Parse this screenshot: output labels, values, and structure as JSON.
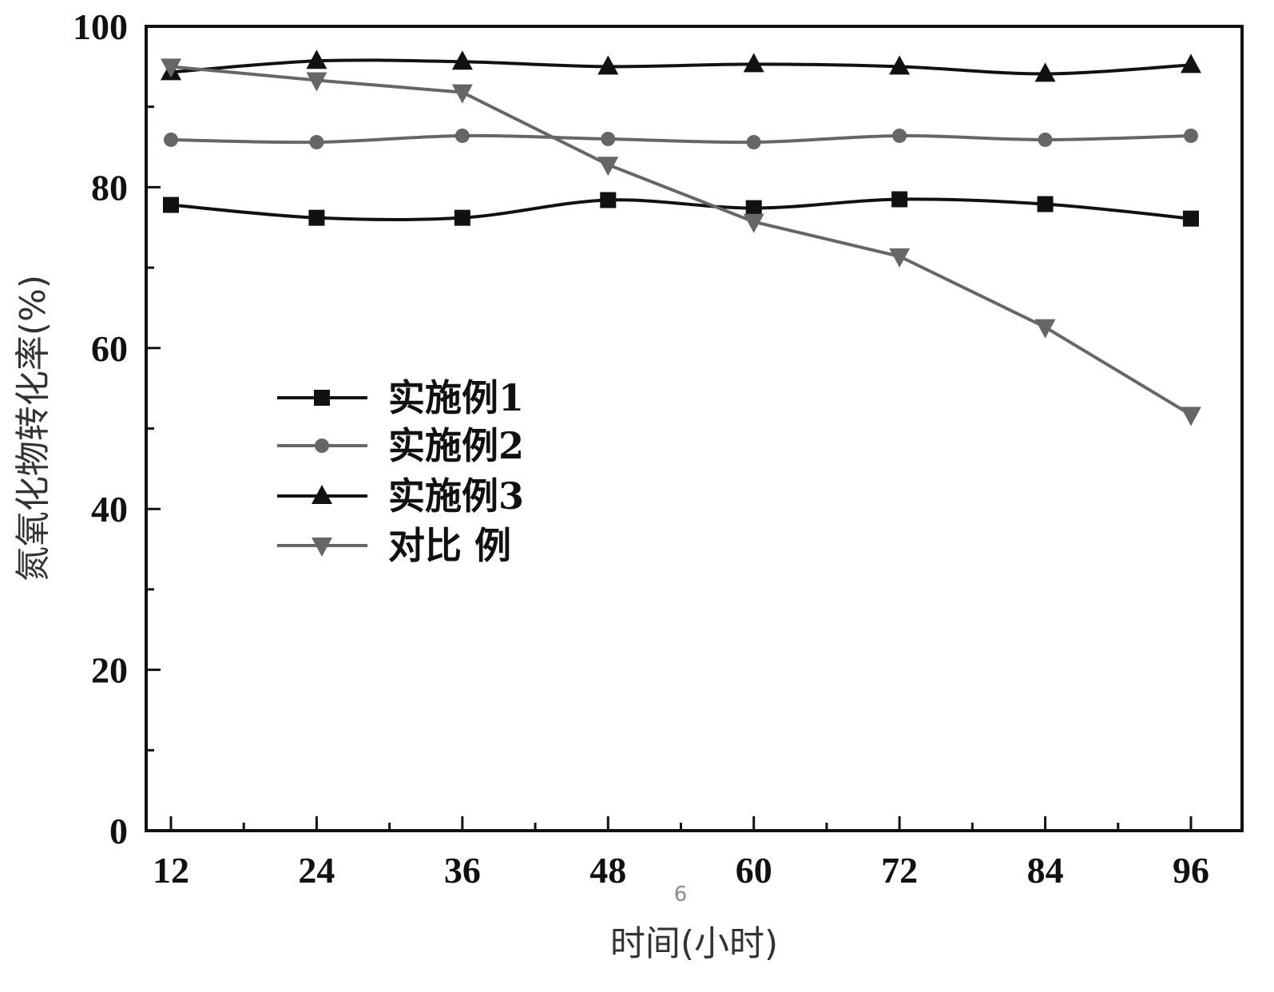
{
  "chart_data": {
    "type": "line",
    "title": "",
    "xlabel": "时间(小时)",
    "ylabel": "氮氧化物转化率(%)",
    "x": [
      12,
      24,
      36,
      48,
      60,
      72,
      84,
      96
    ],
    "x_ticks": [
      "12",
      "24",
      "36",
      "48",
      "60",
      "72",
      "84",
      "96"
    ],
    "y_ticks": [
      "0",
      "20",
      "40",
      "60",
      "80",
      "100"
    ],
    "xlim": [
      10,
      100
    ],
    "ylim": [
      0,
      100
    ],
    "grid": false,
    "legend_position": "center-left",
    "series": [
      {
        "name": "实施例1",
        "marker": "square",
        "color": "#111111",
        "values": [
          77.8,
          76.2,
          76.2,
          78.4,
          77.4,
          78.5,
          77.9,
          76.1
        ]
      },
      {
        "name": "实施例2",
        "marker": "circle",
        "color": "#666666",
        "values": [
          85.9,
          85.6,
          86.4,
          86.0,
          85.6,
          86.4,
          85.9,
          86.4
        ]
      },
      {
        "name": "实施例3",
        "marker": "triangle-up",
        "color": "#111111",
        "values": [
          94.3,
          95.7,
          95.6,
          95.0,
          95.3,
          95.0,
          94.1,
          95.2
        ]
      },
      {
        "name": "对比 例",
        "marker": "triangle-down",
        "color": "#666666",
        "values": [
          95.0,
          93.3,
          91.8,
          82.8,
          75.7,
          71.4,
          62.6,
          51.7
        ]
      }
    ],
    "annotations": [
      "6"
    ]
  }
}
